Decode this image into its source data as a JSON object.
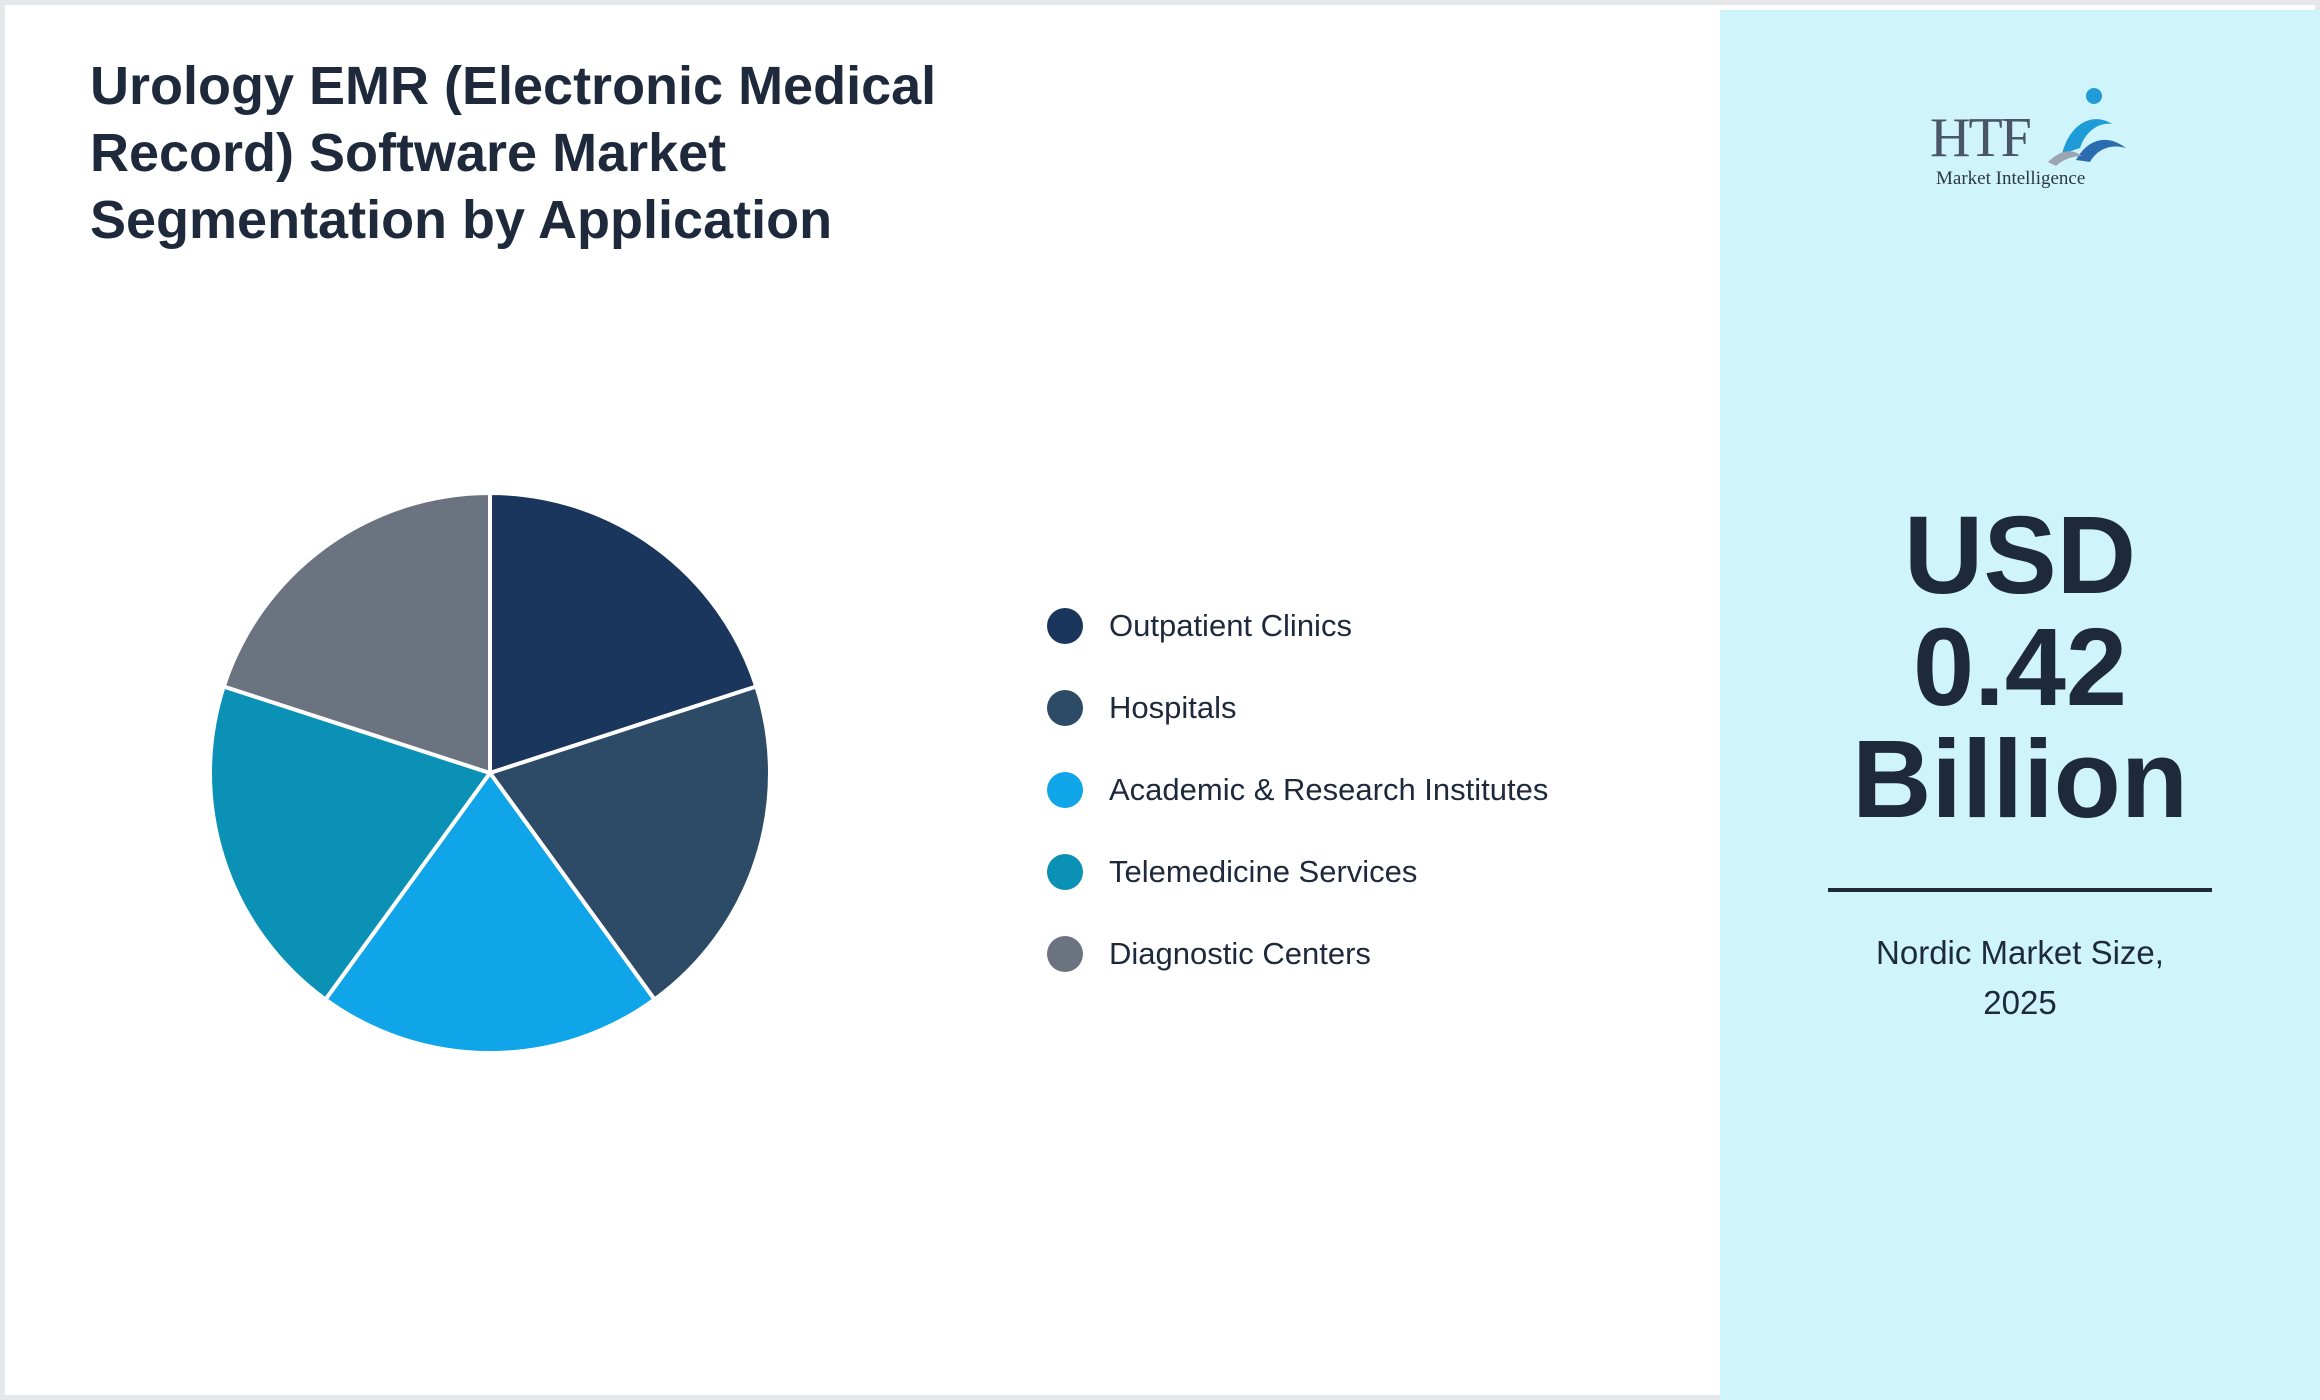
{
  "title": "Urology EMR (Electronic Medical Record) Software Market Segmentation by Application",
  "chart_data": {
    "type": "pie",
    "title": "Urology EMR (Electronic Medical Record) Software Market Segmentation by Application",
    "categories": [
      "Outpatient Clinics",
      "Hospitals",
      "Academic & Research Institutes",
      "Telemedicine Services",
      "Diagnostic Centers"
    ],
    "values": [
      20,
      20,
      20,
      20,
      20
    ],
    "colors": [
      "#1b365d",
      "#2d4a66",
      "#10a5e8",
      "#0b91b5",
      "#6b7280"
    ],
    "legend_position": "right"
  },
  "logo": {
    "brand": "HTF",
    "subtitle": "Market Intelligence",
    "icon": "htf-dolphin-logo-icon"
  },
  "market": {
    "value_line1": "USD",
    "value_line2": "0.42",
    "value_line3": "Billion",
    "caption_line1": "Nordic Market Size,",
    "caption_line2": "2025"
  }
}
